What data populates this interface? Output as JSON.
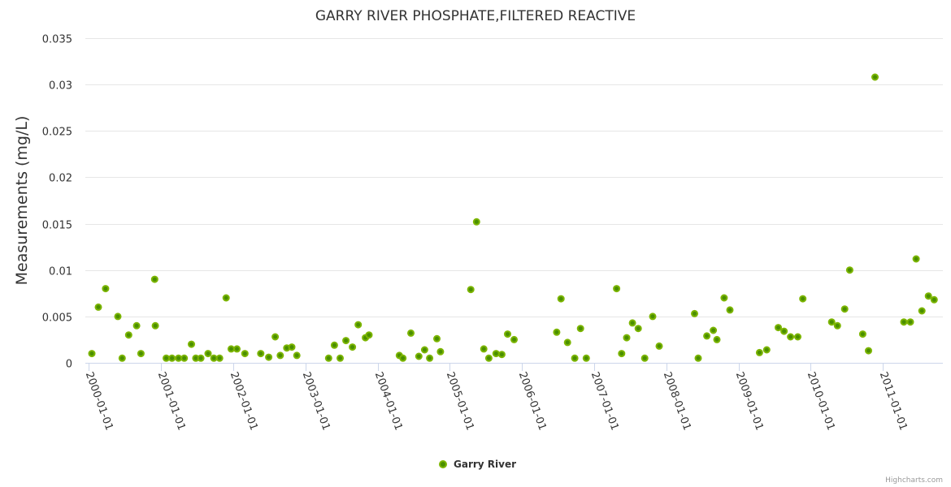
{
  "chart_data": {
    "type": "scatter",
    "title": "GARRY RIVER PHOSPHATE,FILTERED REACTIVE",
    "xlabel": "",
    "ylabel": "Measurements (mg/L)",
    "ylim": [
      0,
      0.035
    ],
    "yticks": [
      0,
      0.005,
      0.01,
      0.015,
      0.02,
      0.025,
      0.03,
      0.035
    ],
    "ytick_labels": [
      "0",
      "0.005",
      "0.01",
      "0.015",
      "0.02",
      "0.025",
      "0.03",
      "0.035"
    ],
    "xlim": [
      1999.95,
      2011.83
    ],
    "xticks": [
      2000,
      2001,
      2002,
      2003,
      2004,
      2005,
      2006,
      2007,
      2008,
      2009,
      2010,
      2011
    ],
    "xtick_labels": [
      "2000-01-01",
      "2001-01-01",
      "2002-01-01",
      "2003-01-01",
      "2004-01-01",
      "2005-01-01",
      "2006-01-01",
      "2007-01-01",
      "2008-01-01",
      "2009-01-01",
      "2010-01-01",
      "2011-01-01"
    ],
    "grid": true,
    "legend_position": "bottom-center",
    "series": [
      {
        "name": "Garry River",
        "color": "#7cb500",
        "points": [
          [
            2000.04,
            0.001
          ],
          [
            2000.13,
            0.006
          ],
          [
            2000.23,
            0.008
          ],
          [
            2000.4,
            0.005
          ],
          [
            2000.46,
            0.0005
          ],
          [
            2000.55,
            0.003
          ],
          [
            2000.66,
            0.004
          ],
          [
            2000.72,
            0.001
          ],
          [
            2000.91,
            0.009
          ],
          [
            2000.92,
            0.004
          ],
          [
            2001.07,
            0.0005
          ],
          [
            2001.15,
            0.0005
          ],
          [
            2001.24,
            0.0005
          ],
          [
            2001.32,
            0.0005
          ],
          [
            2001.42,
            0.002
          ],
          [
            2001.48,
            0.0005
          ],
          [
            2001.55,
            0.0005
          ],
          [
            2001.65,
            0.001
          ],
          [
            2001.73,
            0.0005
          ],
          [
            2001.81,
            0.0005
          ],
          [
            2001.9,
            0.007
          ],
          [
            2001.97,
            0.0015
          ],
          [
            2002.05,
            0.0015
          ],
          [
            2002.16,
            0.001
          ],
          [
            2002.38,
            0.001
          ],
          [
            2002.49,
            0.0006
          ],
          [
            2002.58,
            0.0028
          ],
          [
            2002.65,
            0.0008
          ],
          [
            2002.74,
            0.0016
          ],
          [
            2002.81,
            0.0017
          ],
          [
            2002.88,
            0.0008
          ],
          [
            2003.32,
            0.0005
          ],
          [
            2003.4,
            0.0019
          ],
          [
            2003.48,
            0.0005
          ],
          [
            2003.56,
            0.0024
          ],
          [
            2003.65,
            0.0017
          ],
          [
            2003.73,
            0.0041
          ],
          [
            2003.83,
            0.0027
          ],
          [
            2003.88,
            0.003
          ],
          [
            2004.3,
            0.0008
          ],
          [
            2004.35,
            0.0005
          ],
          [
            2004.46,
            0.0032
          ],
          [
            2004.57,
            0.0007
          ],
          [
            2004.65,
            0.0014
          ],
          [
            2004.72,
            0.0005
          ],
          [
            2004.82,
            0.0026
          ],
          [
            2004.87,
            0.0012
          ],
          [
            2005.29,
            0.0079
          ],
          [
            2005.37,
            0.0152
          ],
          [
            2005.47,
            0.0015
          ],
          [
            2005.54,
            0.0005
          ],
          [
            2005.64,
            0.001
          ],
          [
            2005.72,
            0.0009
          ],
          [
            2005.8,
            0.0031
          ],
          [
            2005.89,
            0.0025
          ],
          [
            2006.48,
            0.0033
          ],
          [
            2006.54,
            0.0069
          ],
          [
            2006.63,
            0.0022
          ],
          [
            2006.73,
            0.0005
          ],
          [
            2006.81,
            0.0037
          ],
          [
            2006.89,
            0.0005
          ],
          [
            2007.31,
            0.008
          ],
          [
            2007.38,
            0.001
          ],
          [
            2007.45,
            0.0027
          ],
          [
            2007.53,
            0.0043
          ],
          [
            2007.61,
            0.0037
          ],
          [
            2007.7,
            0.0005
          ],
          [
            2007.81,
            0.005
          ],
          [
            2007.9,
            0.0018
          ],
          [
            2008.39,
            0.0053
          ],
          [
            2008.44,
            0.0005
          ],
          [
            2008.56,
            0.0029
          ],
          [
            2008.65,
            0.0035
          ],
          [
            2008.7,
            0.0025
          ],
          [
            2008.8,
            0.007
          ],
          [
            2008.88,
            0.0057
          ],
          [
            2009.29,
            0.0011
          ],
          [
            2009.39,
            0.0014
          ],
          [
            2009.55,
            0.0038
          ],
          [
            2009.63,
            0.0034
          ],
          [
            2009.72,
            0.0028
          ],
          [
            2009.82,
            0.0028
          ],
          [
            2009.89,
            0.0069
          ],
          [
            2010.29,
            0.0044
          ],
          [
            2010.37,
            0.004
          ],
          [
            2010.47,
            0.0058
          ],
          [
            2010.54,
            0.01
          ],
          [
            2010.72,
            0.0031
          ],
          [
            2010.8,
            0.0013
          ],
          [
            2010.89,
            0.0308
          ],
          [
            2011.29,
            0.0044
          ],
          [
            2011.38,
            0.0044
          ],
          [
            2011.46,
            0.0112
          ],
          [
            2011.54,
            0.0056
          ],
          [
            2011.63,
            0.0072
          ],
          [
            2011.71,
            0.0068
          ]
        ]
      }
    ]
  },
  "credits": "Highcharts.com"
}
